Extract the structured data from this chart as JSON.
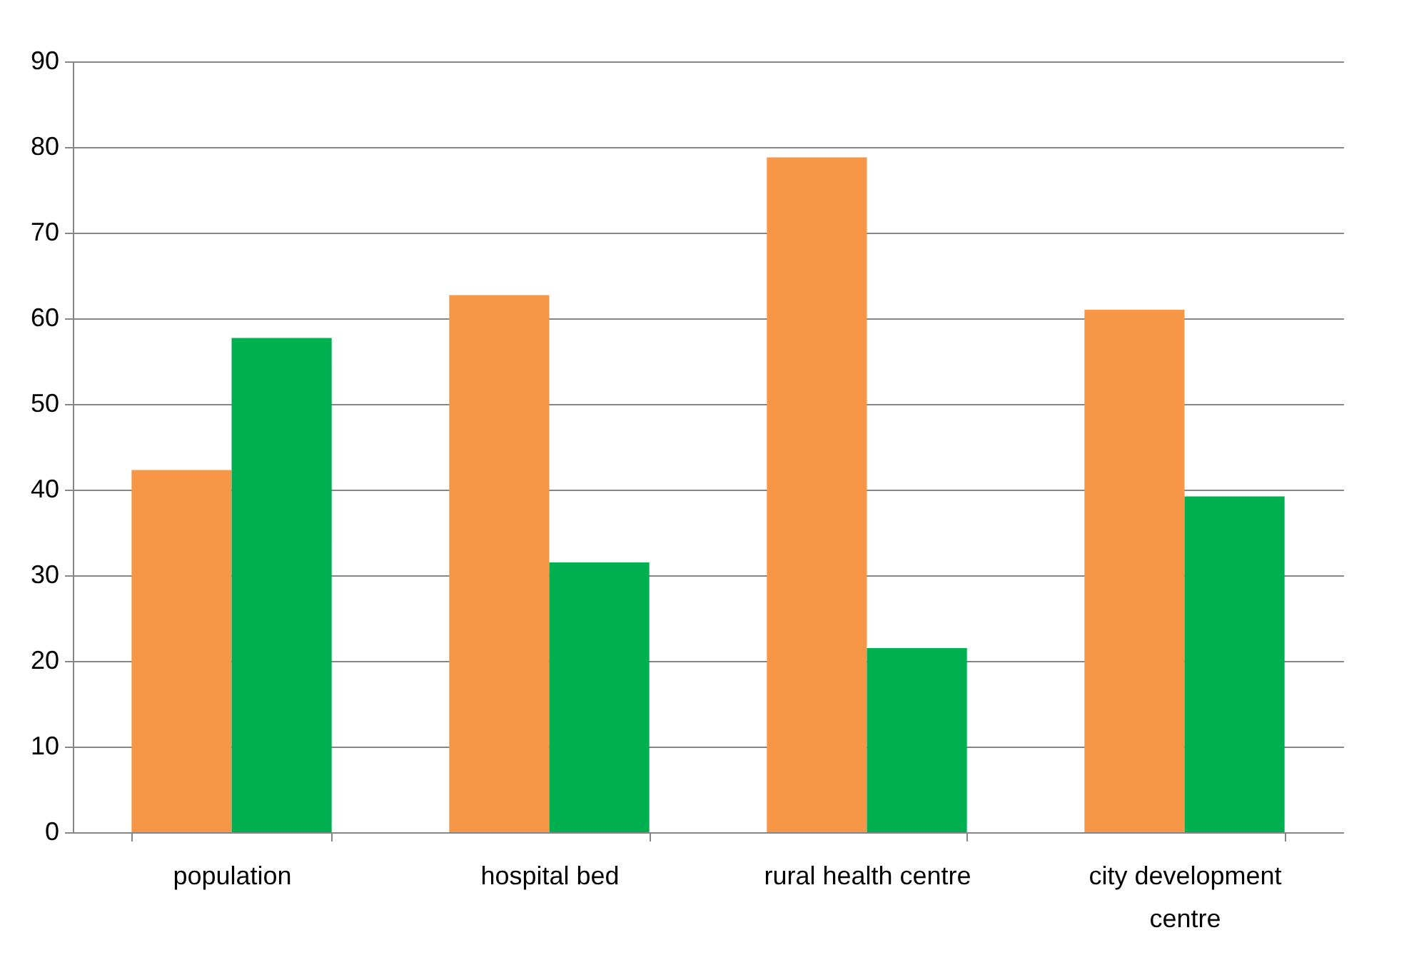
{
  "chart_data": {
    "type": "bar",
    "categories": [
      "population",
      "hospital bed",
      "rural health centre",
      "city development centre"
    ],
    "series": [
      {
        "color": "#f79646",
        "values": [
          42.3,
          62.7,
          78.8,
          61.0
        ]
      },
      {
        "color": "#00b050",
        "values": [
          57.7,
          31.5,
          21.5,
          39.2
        ]
      }
    ],
    "ylim": [
      0,
      90
    ],
    "yticks": [
      0,
      10,
      20,
      30,
      40,
      50,
      60,
      70,
      80,
      90
    ],
    "grid": "y"
  }
}
